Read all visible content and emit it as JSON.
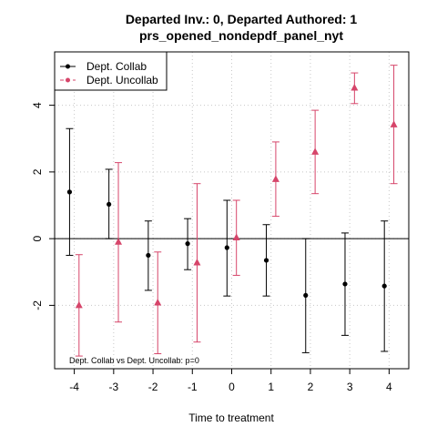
{
  "chart_data": {
    "type": "scatter",
    "title": "Departed Inv.: 0, Departed Authored: 1",
    "subtitle": "prs_opened_nondepdf_panel_nyt",
    "xlabel": "Time to treatment",
    "ylabel": "",
    "xlim": [
      -4.5,
      4.5
    ],
    "ylim": [
      -3.9,
      5.6
    ],
    "x_ticks": [
      -4,
      -3,
      -2,
      -1,
      0,
      1,
      2,
      3,
      4
    ],
    "y_ticks": [
      -2,
      0,
      2,
      4
    ],
    "grid": true,
    "reference_line_y": 0,
    "legend_position": "top-left",
    "annotation": "Dept. Collab vs Dept. Uncollab: p=0",
    "series": [
      {
        "name": "Dept. Collab",
        "color": "#000000",
        "marker": "circle",
        "offset": -0.12,
        "points": [
          {
            "x": -4,
            "y": 1.4,
            "lo": -0.5,
            "hi": 3.3
          },
          {
            "x": -3,
            "y": 1.03,
            "lo": 0.0,
            "hi": 2.08
          },
          {
            "x": -2,
            "y": -0.5,
            "lo": -1.55,
            "hi": 0.53
          },
          {
            "x": -1,
            "y": -0.15,
            "lo": -0.93,
            "hi": 0.6
          },
          {
            "x": 0,
            "y": -0.27,
            "lo": -1.72,
            "hi": 1.15
          },
          {
            "x": 1,
            "y": -0.65,
            "lo": -1.72,
            "hi": 0.42
          },
          {
            "x": 2,
            "y": -1.7,
            "lo": -3.42,
            "hi": 0.0
          },
          {
            "x": 3,
            "y": -1.36,
            "lo": -2.9,
            "hi": 0.17
          },
          {
            "x": 4,
            "y": -1.42,
            "lo": -3.38,
            "hi": 0.53
          }
        ]
      },
      {
        "name": "Dept. Uncollab",
        "color": "#d6456a",
        "marker": "triangle",
        "offset": 0.12,
        "points": [
          {
            "x": -4,
            "y": -2.0,
            "lo": -3.52,
            "hi": -0.48
          },
          {
            "x": -3,
            "y": -0.1,
            "lo": -2.5,
            "hi": 2.28
          },
          {
            "x": -2,
            "y": -1.92,
            "lo": -3.45,
            "hi": -0.4
          },
          {
            "x": -1,
            "y": -0.72,
            "lo": -3.1,
            "hi": 1.65
          },
          {
            "x": 0,
            "y": 0.03,
            "lo": -1.1,
            "hi": 1.15
          },
          {
            "x": 1,
            "y": 1.78,
            "lo": 0.67,
            "hi": 2.9
          },
          {
            "x": 2,
            "y": 2.6,
            "lo": 1.35,
            "hi": 3.85
          },
          {
            "x": 3,
            "y": 4.52,
            "lo": 4.05,
            "hi": 4.97
          },
          {
            "x": 4,
            "y": 3.42,
            "lo": 1.65,
            "hi": 5.2
          }
        ]
      }
    ]
  }
}
